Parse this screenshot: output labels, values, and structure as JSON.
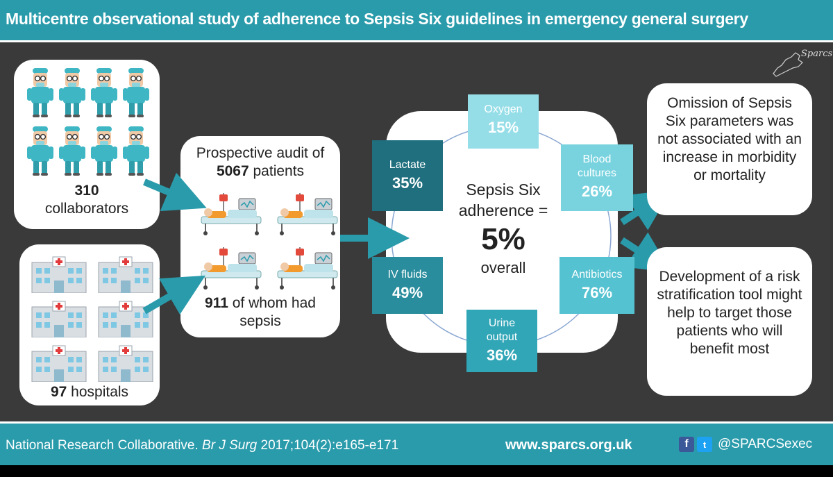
{
  "header": {
    "title": "Multicentre observational study of adherence to Sepsis Six guidelines in emergency general surgery"
  },
  "collaborators": {
    "count": "310",
    "label": "collaborators"
  },
  "hospitals": {
    "count": "97",
    "label": "hospitals"
  },
  "audit": {
    "line1": "Prospective audit of",
    "count": "5067",
    "line2": "patients",
    "sepsis_count": "911",
    "sepsis_line1": "of whom had",
    "sepsis_line2": "sepsis"
  },
  "adherence": {
    "line1": "Sepsis Six",
    "line2": "adherence =",
    "value": "5%",
    "line3": "overall"
  },
  "parameters": [
    {
      "label": "Oxygen",
      "value": "15%"
    },
    {
      "label": "Blood cultures",
      "value": "26%"
    },
    {
      "label": "Antibiotics",
      "value": "76%"
    },
    {
      "label": "Urine output",
      "value": "36%"
    },
    {
      "label": "IV fluids",
      "value": "49%"
    },
    {
      "label": "Lactate",
      "value": "35%"
    }
  ],
  "conclusions": {
    "first": "Omission of Sepsis Six parameters was not associated with an increase in morbidity or mortality",
    "second": "Development of a risk stratification tool might help to target those patients who will benefit most"
  },
  "logo": {
    "text": "Sparcs"
  },
  "footer": {
    "citation_authors": "National Research Collaborative.",
    "citation_journal": "Br J Surg",
    "citation_ref": "2017;104(2):e165-e171",
    "website": "www.sparcs.org.uk",
    "facebook_glyph": "f",
    "twitter_glyph": "t",
    "handle": "@SPARCSexec"
  },
  "colors": {
    "teal": "#2a9bab",
    "lactate": "#1f6f7e",
    "iv_fluids": "#2a8d9d",
    "antibiotics": "#55c2d1",
    "urine": "#31a6b7",
    "blood": "#78d3df",
    "oxygen": "#95dee8"
  }
}
